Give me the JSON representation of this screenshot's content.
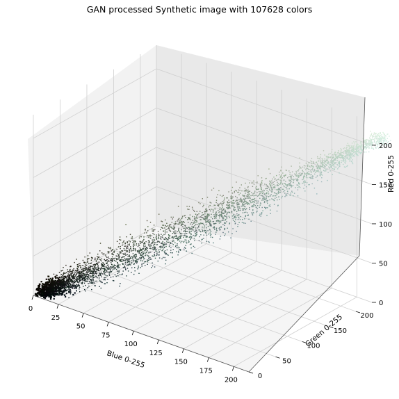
{
  "chart_data": {
    "type": "scatter",
    "projection": "3d",
    "title": "GAN processed Synthetic image with 107628 colors",
    "xlabel": "Blue 0-255",
    "ylabel": "Green 0-255",
    "zlabel": "Red 0-255",
    "xlim": [
      0,
      215
    ],
    "ylim": [
      0,
      230
    ],
    "zlim": [
      0,
      230
    ],
    "xticks": [
      0,
      25,
      50,
      75,
      100,
      125,
      150,
      175,
      200
    ],
    "yticks": [
      0,
      50,
      100,
      150,
      200
    ],
    "zticks": [
      0,
      50,
      100,
      150,
      200
    ],
    "grid": true,
    "point_color_rule": "each point colored by its own RGB value",
    "series": [
      {
        "distribution": "dense diagonal cloud from near-black to pale cyan",
        "centerline": [
          {
            "blue": 5,
            "green": 5,
            "red": 5
          },
          {
            "blue": 40,
            "green": 45,
            "red": 35
          },
          {
            "blue": 90,
            "green": 100,
            "red": 80
          },
          {
            "blue": 140,
            "green": 150,
            "red": 130
          },
          {
            "blue": 190,
            "green": 200,
            "red": 180
          },
          {
            "blue": 225,
            "green": 235,
            "red": 215
          }
        ]
      }
    ]
  }
}
